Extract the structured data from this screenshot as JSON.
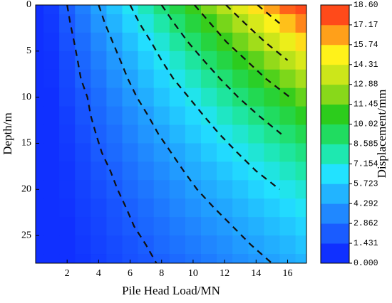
{
  "chart_data": {
    "type": "contour",
    "xlabel": "Pile Head Load/MN",
    "ylabel": "Depth/m",
    "colorbar_label": "Displacement/mm",
    "xlim": [
      0,
      17.2
    ],
    "xticks": [
      2,
      4,
      6,
      8,
      10,
      12,
      14,
      16
    ],
    "ylim": [
      0,
      28
    ],
    "yticks": [
      0,
      5,
      10,
      15,
      20,
      25
    ],
    "y_inverted": true,
    "x": [
      0,
      1,
      2,
      3,
      4,
      5,
      6,
      7,
      8,
      9,
      10,
      11,
      12,
      13,
      14,
      15,
      16,
      17
    ],
    "y": [
      0,
      2,
      4,
      6,
      8,
      10,
      12,
      14,
      16,
      18,
      20,
      22,
      24,
      26,
      28
    ],
    "z": [
      [
        0,
        1.1,
        2.2,
        3.3,
        4.4,
        5.5,
        6.6,
        7.7,
        8.8,
        9.8,
        10.9,
        12.0,
        13.1,
        14.2,
        15.3,
        16.4,
        17.5,
        18.6
      ],
      [
        0,
        1.0,
        2.0,
        3.0,
        4.0,
        5.0,
        6.0,
        7.0,
        8.0,
        9.0,
        10.0,
        10.9,
        11.9,
        12.9,
        13.9,
        14.9,
        15.9,
        16.9
      ],
      [
        0,
        0.9,
        1.8,
        2.7,
        3.6,
        4.5,
        5.4,
        6.3,
        7.2,
        8.2,
        9.1,
        10.0,
        10.9,
        11.8,
        12.7,
        13.6,
        14.5,
        15.4
      ],
      [
        0,
        0.8,
        1.6,
        2.5,
        3.3,
        4.1,
        4.9,
        5.8,
        6.6,
        7.4,
        8.2,
        9.1,
        9.9,
        10.7,
        11.5,
        12.4,
        13.2,
        14.0
      ],
      [
        0,
        0.8,
        1.5,
        2.3,
        3.0,
        3.8,
        4.5,
        5.3,
        6.0,
        6.8,
        7.5,
        8.3,
        9.0,
        9.8,
        10.5,
        11.3,
        12.0,
        12.8
      ],
      [
        0,
        0.7,
        1.4,
        2.0,
        2.7,
        3.4,
        4.1,
        4.8,
        5.5,
        6.1,
        6.8,
        7.5,
        8.2,
        8.9,
        9.6,
        10.2,
        10.9,
        11.6
      ],
      [
        0,
        0.6,
        1.2,
        1.9,
        2.5,
        3.1,
        3.7,
        4.3,
        5.0,
        5.6,
        6.2,
        6.8,
        7.5,
        8.1,
        8.7,
        9.3,
        9.9,
        10.6
      ],
      [
        0,
        0.6,
        1.1,
        1.7,
        2.3,
        2.8,
        3.4,
        4.0,
        4.5,
        5.1,
        5.7,
        6.2,
        6.8,
        7.3,
        7.9,
        8.5,
        9.0,
        9.6
      ],
      [
        0,
        0.5,
        1.0,
        1.5,
        2.1,
        2.6,
        3.1,
        3.6,
        4.1,
        4.6,
        5.1,
        5.7,
        6.2,
        6.7,
        7.2,
        7.7,
        8.2,
        8.7
      ],
      [
        0,
        0.5,
        0.9,
        1.4,
        1.9,
        2.3,
        2.8,
        3.3,
        3.7,
        4.2,
        4.7,
        5.1,
        5.6,
        6.1,
        6.6,
        7.0,
        7.5,
        8.0
      ],
      [
        0,
        0.4,
        0.9,
        1.3,
        1.7,
        2.1,
        2.6,
        3.0,
        3.4,
        3.8,
        4.3,
        4.7,
        5.1,
        5.5,
        6.0,
        6.4,
        6.8,
        7.2
      ],
      [
        0,
        0.4,
        0.8,
        1.2,
        1.5,
        1.9,
        2.3,
        2.7,
        3.1,
        3.5,
        3.9,
        4.3,
        4.6,
        5.0,
        5.4,
        5.8,
        6.2,
        6.6
      ],
      [
        0,
        0.4,
        0.7,
        1.1,
        1.4,
        1.8,
        2.1,
        2.5,
        2.8,
        3.2,
        3.5,
        3.9,
        4.2,
        4.6,
        4.9,
        5.3,
        5.6,
        6.0
      ],
      [
        0,
        0.3,
        0.6,
        1.0,
        1.3,
        1.6,
        1.9,
        2.2,
        2.6,
        2.9,
        3.2,
        3.5,
        3.8,
        4.2,
        4.5,
        4.8,
        5.1,
        5.5
      ],
      [
        0,
        0.3,
        0.6,
        0.9,
        1.2,
        1.5,
        1.8,
        2.0,
        2.3,
        2.6,
        2.9,
        3.2,
        3.5,
        3.8,
        4.1,
        4.4,
        4.7,
        5.0
      ]
    ],
    "levels": [
      {
        "value": 0,
        "label": "0.000"
      },
      1.431,
      2.862,
      4.292,
      5.723,
      7.154,
      8.585,
      10.02,
      11.45,
      12.88,
      14.31,
      15.74,
      17.17,
      {
        "value": 18.6,
        "label": "18.60"
      }
    ],
    "level_colors": [
      "#1030ff",
      "#1a5cff",
      "#2088ff",
      "#22b4ff",
      "#22e2ff",
      "#1ee8b0",
      "#20dc60",
      "#2ccc1c",
      "#88d81a",
      "#cce61a",
      "#fff21a",
      "#ffa01a",
      "#ff4a1a"
    ],
    "contour_levels": [
      2.2,
      4.4,
      6.6,
      8.8,
      11,
      13.2,
      15.4,
      17.6
    ],
    "contour_color": "#111111"
  }
}
